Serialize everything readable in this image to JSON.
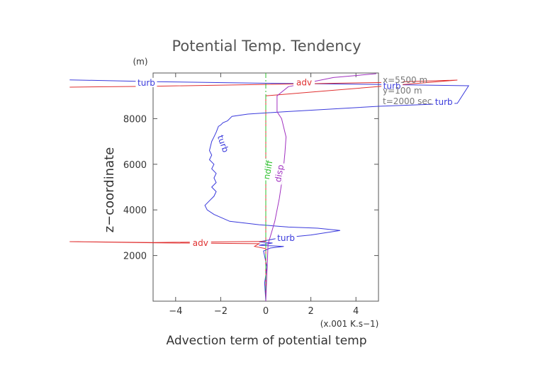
{
  "chart_data": {
    "type": "line",
    "title": "Potential Temp. Tendency",
    "xlabel": "Advection term of potential temp",
    "ylabel": "z−coordinate",
    "x_unit": "(x.001 K.s−1)",
    "y_unit": "(m)",
    "xlim": [
      -5,
      5
    ],
    "ylim": [
      0,
      10000
    ],
    "x_ticks": [
      -4,
      -2,
      0,
      2,
      4
    ],
    "x_tick_labels": [
      "−4",
      "−2",
      "0",
      "2",
      "4"
    ],
    "y_ticks": [
      2000,
      4000,
      6000,
      8000
    ],
    "y_tick_labels": [
      "2000",
      "4000",
      "6000",
      "8000"
    ],
    "grid": false,
    "annotations": [
      "x=5500 m",
      "y=100 m",
      "t=2000 sec"
    ],
    "series": [
      {
        "name": "turb",
        "color": "#3a3adc",
        "labels": [
          {
            "text": "turb",
            "x": -5.3,
            "y": 9570
          },
          {
            "text": "turb",
            "x": 5.6,
            "y": 9420
          },
          {
            "text": "turb",
            "x": 7.9,
            "y": 8720
          },
          {
            "text": "turb",
            "x": -1.9,
            "y": 6900
          },
          {
            "text": "turb",
            "x": 0.9,
            "y": 2770
          }
        ],
        "x": [
          -8.7,
          -5.0,
          -0.5,
          4.9,
          9.0,
          8.5,
          5.0,
          0.8,
          -0.8,
          -1.5,
          -1.7,
          -1.9,
          -2.0,
          -2.1,
          -2.2,
          -2.3,
          -2.4,
          -2.5,
          -2.4,
          -2.5,
          -2.3,
          -2.4,
          -2.2,
          -2.3,
          -2.2,
          -2.4,
          -2.2,
          -2.3,
          -2.5,
          -2.7,
          -2.6,
          -2.3,
          -1.6,
          -0.3,
          1.0,
          2.3,
          3.3,
          2.0,
          0.5,
          -0.3,
          0.3,
          -0.3,
          0.8,
          0.2,
          -0.1,
          0.05,
          -0.05,
          0.0
        ],
        "y": [
          9700,
          9620,
          9560,
          9500,
          9440,
          8670,
          8540,
          8300,
          8200,
          8100,
          7900,
          7820,
          7720,
          7660,
          7400,
          7200,
          7000,
          6600,
          6400,
          6200,
          6000,
          5800,
          5600,
          5400,
          5200,
          5000,
          4800,
          4600,
          4400,
          4200,
          4000,
          3800,
          3500,
          3350,
          3250,
          3200,
          3100,
          2900,
          2750,
          2600,
          2550,
          2450,
          2400,
          2330,
          2200,
          1500,
          800,
          0
        ]
      },
      {
        "name": "adv",
        "color": "#e03030",
        "labels": [
          {
            "text": "adv",
            "x": 1.7,
            "y": 9580
          },
          {
            "text": "adv",
            "x": -2.9,
            "y": 2540
          }
        ],
        "x": [
          -8.7,
          -5.0,
          0.0,
          5.0,
          8.5,
          0.0,
          0.0,
          -5.0,
          -8.7,
          -5.0,
          -0.3,
          -0.5,
          0.0,
          0.0
        ],
        "y": [
          9380,
          9420,
          9500,
          9580,
          9690,
          9000,
          2620,
          2570,
          2610,
          2560,
          2520,
          2400,
          2300,
          0
        ]
      },
      {
        "name": "ndiff",
        "color": "#2ec02e",
        "labels": [
          {
            "text": "ndiff",
            "x": 0.1,
            "y": 5750
          }
        ],
        "x": [
          0.0,
          0.0,
          0.0,
          0.0,
          0.0
        ],
        "y": [
          0,
          3000,
          6000,
          9000,
          10000
        ]
      },
      {
        "name": "disp",
        "color": "#a030c0",
        "labels": [
          {
            "text": "disp",
            "x": 0.6,
            "y": 5600
          }
        ],
        "x": [
          4.9,
          3.0,
          1.0,
          0.5,
          0.5,
          0.7,
          0.9,
          0.85,
          0.75,
          0.6,
          0.4,
          0.25,
          0.1,
          0.0
        ],
        "y": [
          9970,
          9800,
          9400,
          9000,
          8300,
          8000,
          7200,
          6500,
          5500,
          4500,
          3500,
          3000,
          2500,
          0
        ]
      }
    ]
  }
}
